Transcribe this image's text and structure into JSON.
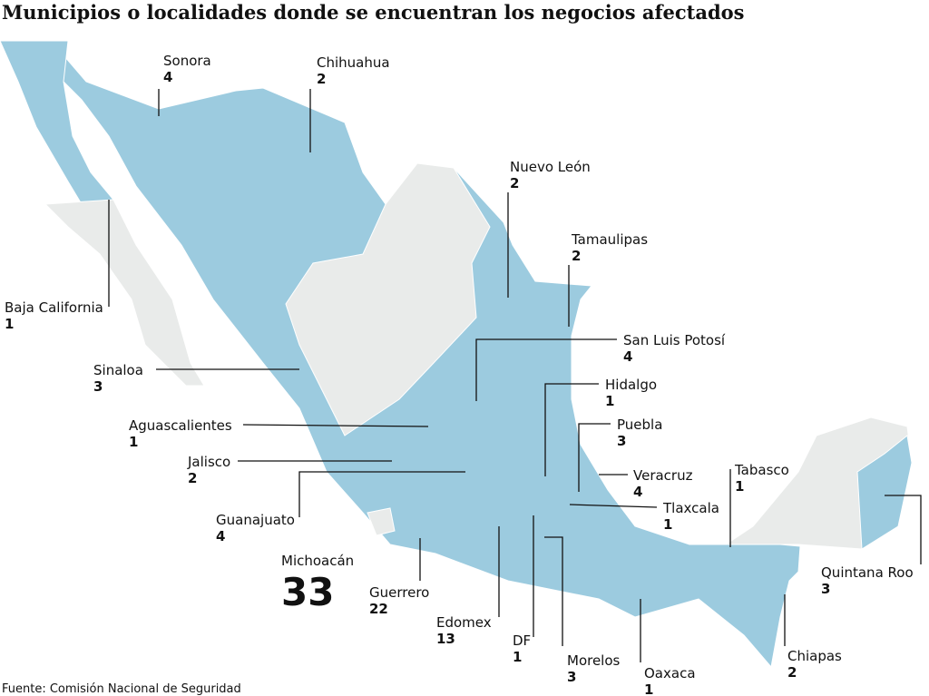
{
  "title": "Municipios o localidades donde se encuentran los negocios afectados",
  "states": [
    {
      "name": "Sonora",
      "count": 4
    },
    {
      "name": "Chihuahua",
      "count": 2
    },
    {
      "name": "Nuevo León",
      "count": 2
    },
    {
      "name": "Tamaulipas",
      "count": 2
    },
    {
      "name": "San Luis Potosí",
      "count": 4
    },
    {
      "name": "Hidalgo",
      "count": 1
    },
    {
      "name": "Puebla",
      "count": 3
    },
    {
      "name": "Veracruz",
      "count": 4
    },
    {
      "name": "Tlaxcala",
      "count": 1
    },
    {
      "name": "Tabasco",
      "count": 1
    },
    {
      "name": "Quintana Roo",
      "count": 3
    },
    {
      "name": "Chiapas",
      "count": 2
    },
    {
      "name": "Oaxaca",
      "count": 1
    },
    {
      "name": "Morelos",
      "count": 3
    },
    {
      "name": "DF",
      "count": 1
    },
    {
      "name": "Edomex",
      "count": 13
    },
    {
      "name": "Guerrero",
      "count": 22
    },
    {
      "name": "Michoacán",
      "count": 33
    },
    {
      "name": "Guanajuato",
      "count": 4
    },
    {
      "name": "Jalisco",
      "count": 2
    },
    {
      "name": "Aguascalientes",
      "count": 1
    },
    {
      "name": "Sinaloa",
      "count": 3
    },
    {
      "name": "Baja California",
      "count": 1
    }
  ],
  "source": "Fuente: Comisión Nacional de Seguridad"
}
